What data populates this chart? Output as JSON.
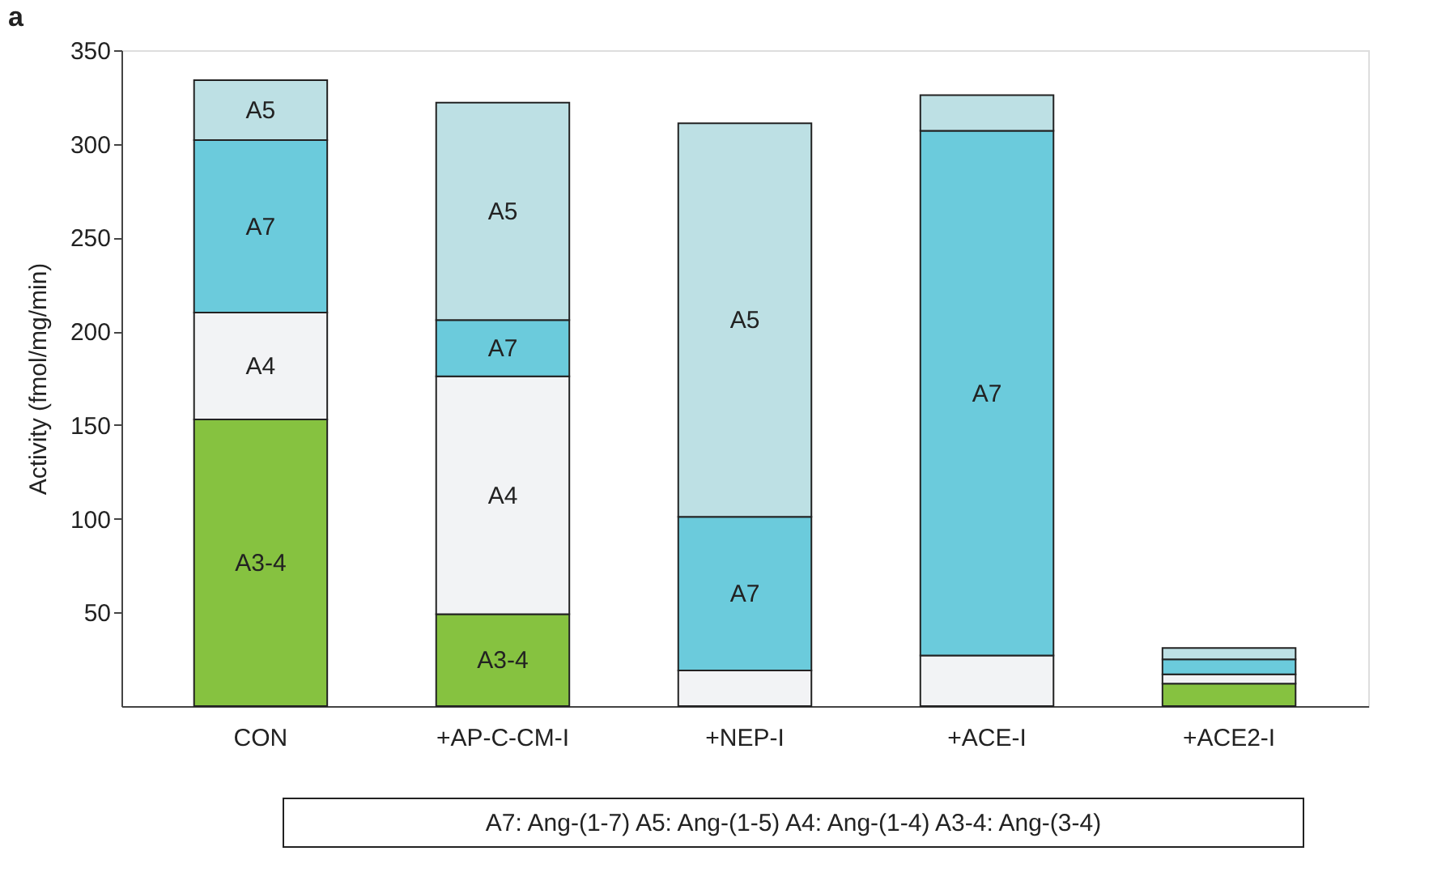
{
  "chart_data": {
    "type": "bar",
    "stacked": true,
    "title": "a",
    "ylabel": "Activity (fmol/mg/min)",
    "categories": [
      "CON",
      "+AP-C-CM-I",
      "+NEP-I",
      "+ACE-I",
      "+ACE2-I"
    ],
    "series": [
      {
        "name": "A3-4",
        "color": "#86c240",
        "values": [
          153,
          49,
          0,
          0,
          12
        ]
      },
      {
        "name": "A4",
        "color": "#f2f3f5",
        "values": [
          57,
          127,
          19,
          27,
          5
        ]
      },
      {
        "name": "A7",
        "color": "#6bcbdc",
        "values": [
          92,
          30,
          82,
          280,
          8
        ]
      },
      {
        "name": "A5",
        "color": "#bde0e4",
        "values": [
          32,
          116,
          210,
          19,
          6
        ]
      }
    ],
    "ylim": [
      0,
      350
    ],
    "yticks": [
      50,
      100,
      150,
      200,
      250,
      300,
      350
    ],
    "grid": false,
    "annotations": [
      "A7: Ang-(1-7)    A5: Ang-(1-5)    A4: Ang-(1-4)    A3-4: Ang-(3-4)"
    ]
  }
}
